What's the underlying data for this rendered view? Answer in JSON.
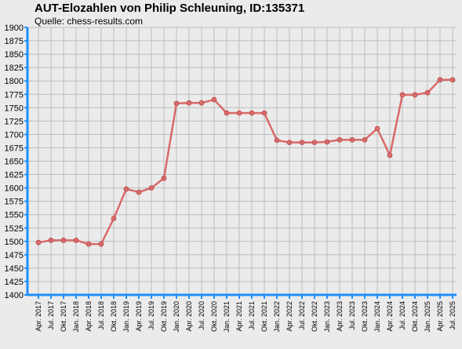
{
  "chart_data": {
    "type": "line",
    "title": "AUT-Elozahlen von Philip Schleuning, ID:135371",
    "subtitle": "Quelle: chess-results.com",
    "xlabel": "",
    "ylabel": "",
    "ylim": [
      1400,
      1900
    ],
    "yticks": [
      1400,
      1425,
      1450,
      1475,
      1500,
      1525,
      1550,
      1575,
      1600,
      1625,
      1650,
      1675,
      1700,
      1725,
      1750,
      1775,
      1800,
      1825,
      1850,
      1875,
      1900
    ],
    "grid": true,
    "categories": [
      "Apr. 2017",
      "Jul. 2017",
      "Okt. 2017",
      "Jan. 2018",
      "Apr. 2018",
      "Jul. 2018",
      "Okt. 2018",
      "Jan. 2019",
      "Apr. 2019",
      "Jul. 2019",
      "Okt. 2019",
      "Jan. 2020",
      "Apr. 2020",
      "Jul. 2020",
      "Okt. 2020",
      "Jan. 2021",
      "Apr. 2021",
      "Jul. 2021",
      "Okt. 2021",
      "Jan. 2022",
      "Apr. 2022",
      "Jul. 2022",
      "Okt. 2022",
      "Jan. 2023",
      "Apr. 2023",
      "Jul. 2023",
      "Okt. 2023",
      "Jan. 2024",
      "Apr. 2024",
      "Jul. 2024",
      "Okt. 2024",
      "Jan. 2025",
      "Apr. 2025",
      "Jul. 2025"
    ],
    "series": [
      {
        "values": [
          1498,
          1502,
          1502,
          1502,
          1495,
          1495,
          1543,
          1598,
          1592,
          1600,
          1618,
          1758,
          1759,
          1759,
          1765,
          1740,
          1740,
          1740,
          1740,
          1689,
          1685,
          1685,
          1685,
          1686,
          1690,
          1690,
          1690,
          1711,
          1661,
          1774,
          1774,
          1778,
          1802,
          1802
        ],
        "color": "#d96a6a"
      }
    ]
  }
}
